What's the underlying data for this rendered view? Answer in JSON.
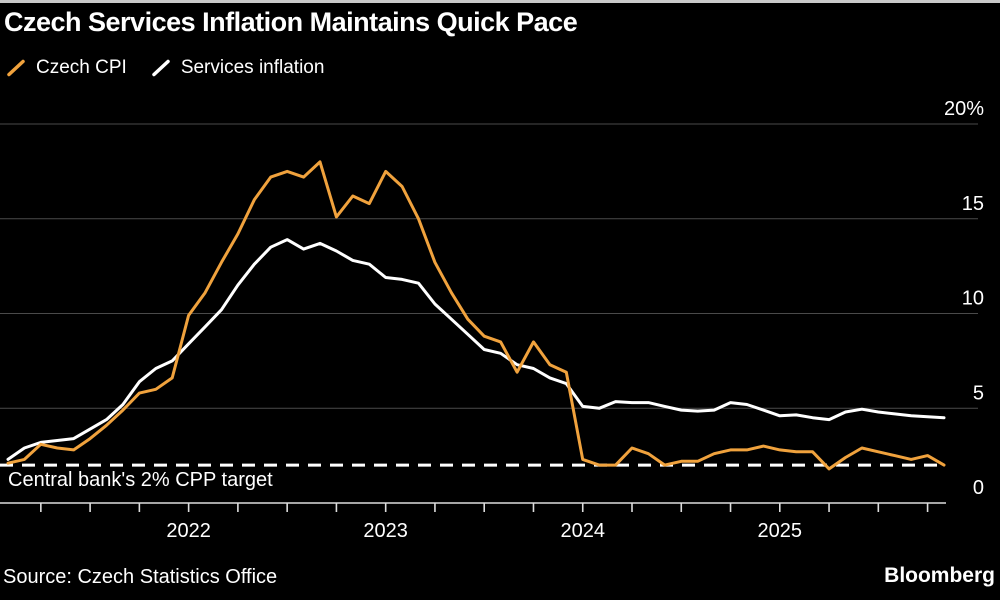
{
  "header": {
    "title": "Czech Services Inflation Maintains Quick Pace",
    "legend": [
      {
        "label": "Czech CPI",
        "color": "#F0A23D"
      },
      {
        "label": "Services inflation",
        "color": "#FFFFFF"
      }
    ]
  },
  "chart_data": {
    "type": "line",
    "frequency": "monthly",
    "x_start": "2021-02",
    "x_end": "2025-11",
    "ylim": [
      0,
      20
    ],
    "grid_on": true,
    "grid_color": "#4a4a4a",
    "axis_color": "#dddddd",
    "background_color": "#000000",
    "y_ticks": [
      {
        "value": 0,
        "label": "0"
      },
      {
        "value": 5,
        "label": "5"
      },
      {
        "value": 10,
        "label": "10"
      },
      {
        "value": 15,
        "label": "15"
      },
      {
        "value": 20,
        "label": "20%"
      }
    ],
    "x_tick_years": [
      "2022",
      "2023",
      "2024",
      "2025"
    ],
    "series": [
      {
        "name": "Services inflation",
        "color": "#FFFFFF",
        "values": [
          2.3,
          2.9,
          3.2,
          3.3,
          3.4,
          3.9,
          4.4,
          5.2,
          6.4,
          7.1,
          7.5,
          8.4,
          9.3,
          10.2,
          11.5,
          12.6,
          13.5,
          13.9,
          13.4,
          13.7,
          13.3,
          12.8,
          12.6,
          11.9,
          11.8,
          11.6,
          10.5,
          9.7,
          8.9,
          8.1,
          7.9,
          7.3,
          7.1,
          6.6,
          6.3,
          5.1,
          5.0,
          5.35,
          5.3,
          5.3,
          5.1,
          4.9,
          4.85,
          4.9,
          5.3,
          5.2,
          4.9,
          4.6,
          4.65,
          4.5,
          4.4,
          4.8,
          4.95,
          4.8,
          4.7,
          4.6,
          4.55,
          4.5
        ]
      },
      {
        "name": "Czech CPI",
        "color": "#F0A23D",
        "values": [
          2.1,
          2.3,
          3.1,
          2.9,
          2.8,
          3.4,
          4.1,
          4.9,
          5.8,
          6.0,
          6.6,
          9.9,
          11.1,
          12.7,
          14.2,
          16.0,
          17.2,
          17.5,
          17.2,
          18.0,
          15.1,
          16.2,
          15.8,
          17.5,
          16.7,
          15.0,
          12.7,
          11.1,
          9.7,
          8.8,
          8.5,
          6.9,
          8.5,
          7.3,
          6.9,
          2.3,
          2.0,
          2.0,
          2.9,
          2.6,
          2.0,
          2.2,
          2.2,
          2.6,
          2.8,
          2.8,
          3.0,
          2.8,
          2.7,
          2.7,
          1.8,
          2.4,
          2.9,
          2.7,
          2.5,
          2.3,
          2.5,
          2.0
        ]
      }
    ],
    "target_line": {
      "value": 2,
      "label": "Central bank's 2% CPP target",
      "style": "dashed",
      "color": "#FFFFFF"
    }
  },
  "footer": {
    "source": "Source: Czech Statistics Office",
    "brand": "Bloomberg"
  }
}
